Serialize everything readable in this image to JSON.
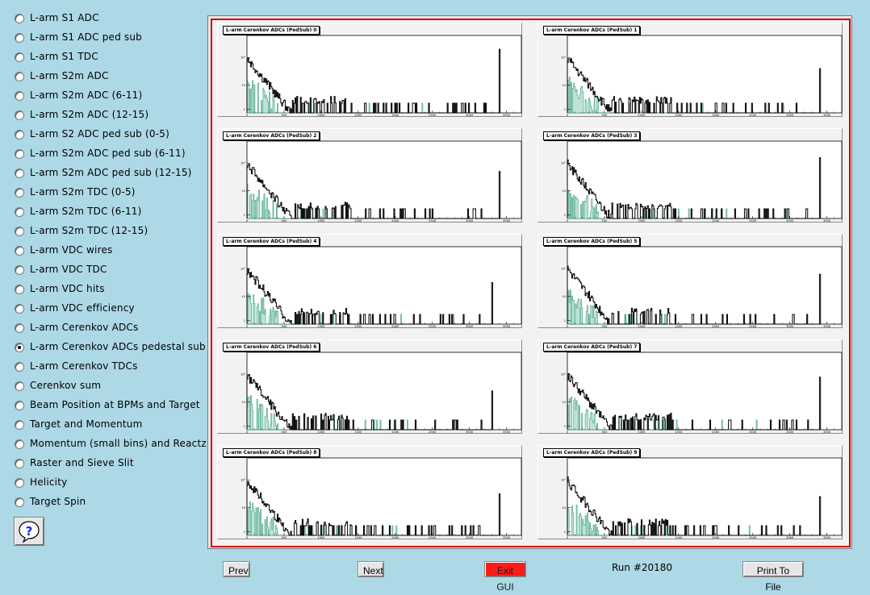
{
  "menu": {
    "items": [
      {
        "label": "L-arm S1 ADC",
        "checked": false
      },
      {
        "label": "L-arm S1 ADC ped sub",
        "checked": false
      },
      {
        "label": "L-arm S1 TDC",
        "checked": false
      },
      {
        "label": "L-arm S2m ADC",
        "checked": false
      },
      {
        "label": "L-arm S2m ADC (6-11)",
        "checked": false
      },
      {
        "label": "L-arm S2m ADC (12-15)",
        "checked": false
      },
      {
        "label": "L-arm S2 ADC ped sub (0-5)",
        "checked": false
      },
      {
        "label": "L-arm S2m ADC ped sub (6-11)",
        "checked": false
      },
      {
        "label": "L-arm S2m ADC ped sub (12-15)",
        "checked": false
      },
      {
        "label": "L-arm S2m TDC (0-5)",
        "checked": false
      },
      {
        "label": "L-arm S2m TDC (6-11)",
        "checked": false
      },
      {
        "label": "L-arm S2m TDC (12-15)",
        "checked": false
      },
      {
        "label": "L-arm VDC wires",
        "checked": false
      },
      {
        "label": "L-arm VDC TDC",
        "checked": false
      },
      {
        "label": "L-arm VDC hits",
        "checked": false
      },
      {
        "label": "L-arm VDC efficiency",
        "checked": false
      },
      {
        "label": "L-arm Cerenkov ADCs",
        "checked": false
      },
      {
        "label": "L-arm Cerenkov ADCs pedestal sub",
        "checked": true
      },
      {
        "label": "L-arm Cerenkov TDCs",
        "checked": false
      },
      {
        "label": "Cerenkov sum",
        "checked": false
      },
      {
        "label": "Beam Position at BPMs and Target",
        "checked": false
      },
      {
        "label": "Target and Momentum",
        "checked": false
      },
      {
        "label": "Momentum (small bins) and Reactz",
        "checked": false
      },
      {
        "label": "Raster and Sieve Slit",
        "checked": false
      },
      {
        "label": "Helicity",
        "checked": false
      },
      {
        "label": "Target Spin",
        "checked": false
      }
    ],
    "help_icon": "question-mark-icon"
  },
  "histograms": [
    {
      "title": "L-arm Cerenkov ADCs (PedSub) 0",
      "peak_x": 3400,
      "peak_log": 2.3
    },
    {
      "title": "L-arm Cerenkov ADCs (PedSub) 1",
      "peak_x": 3400,
      "peak_log": 1.6
    },
    {
      "title": "L-arm Cerenkov ADCs (PedSub) 2",
      "peak_x": 3400,
      "peak_log": 1.7
    },
    {
      "title": "L-arm Cerenkov ADCs (PedSub) 3",
      "peak_x": 3400,
      "peak_log": 2.2
    },
    {
      "title": "L-arm Cerenkov ADCs (PedSub) 4",
      "peak_x": 3300,
      "peak_log": 1.5
    },
    {
      "title": "L-arm Cerenkov ADCs (PedSub) 5",
      "peak_x": 3400,
      "peak_log": 1.8
    },
    {
      "title": "L-arm Cerenkov ADCs (PedSub) 6",
      "peak_x": 3300,
      "peak_log": 1.4
    },
    {
      "title": "L-arm Cerenkov ADCs (PedSub) 7",
      "peak_x": 3400,
      "peak_log": 1.9
    },
    {
      "title": "L-arm Cerenkov ADCs (PedSub) 8",
      "peak_x": 3400,
      "peak_log": 1.5
    },
    {
      "title": "L-arm Cerenkov ADCs (PedSub) 9",
      "peak_x": 3400,
      "peak_log": 1.4
    }
  ],
  "axis": {
    "x_ticks": [
      "0",
      "500",
      "1000",
      "1500",
      "2000",
      "2500",
      "3000",
      "3500"
    ],
    "y_ticks": [
      "1",
      "10",
      "10²"
    ],
    "x_max": 3700
  },
  "footer": {
    "prev_label": "Prev",
    "next_label": "Next",
    "exit_label": "Exit GUI",
    "run_label": "Run #20180",
    "print_label": "Print To File"
  }
}
